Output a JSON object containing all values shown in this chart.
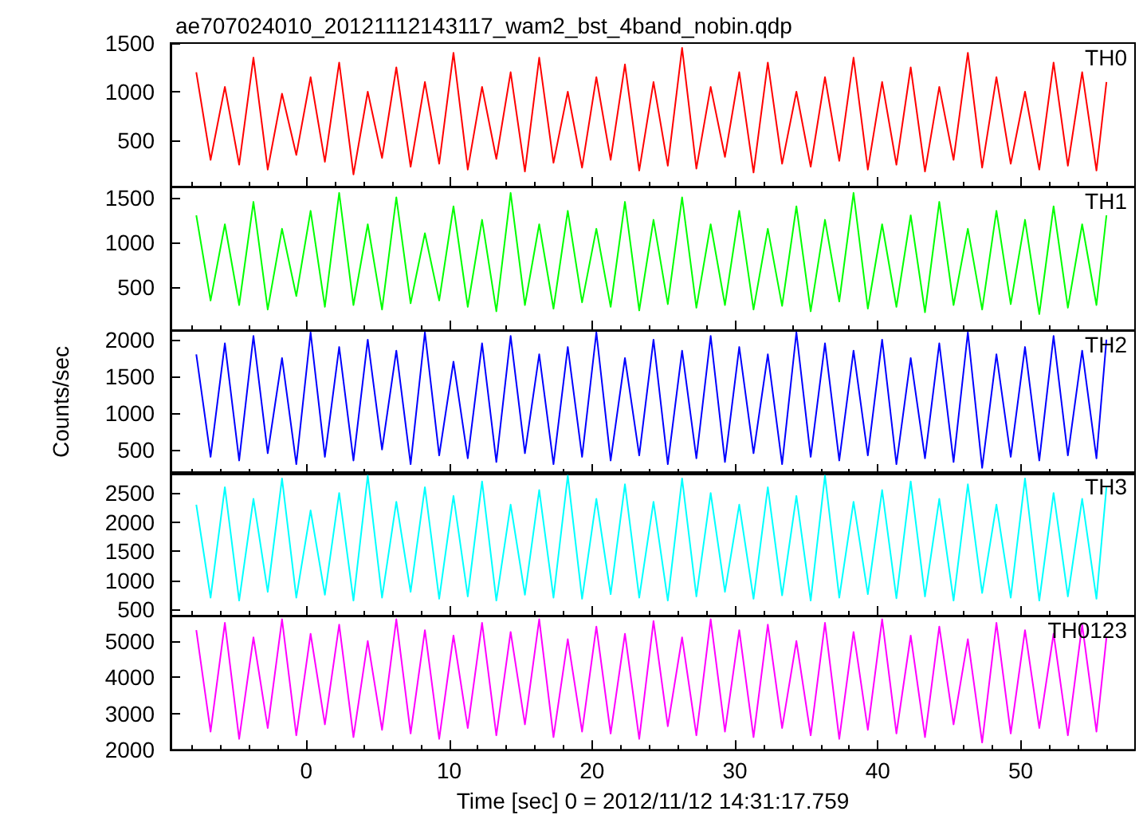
{
  "chart_data": [
    {
      "type": "line",
      "title": "ae707024010_20121112143117_wam2_bst_4band_nobin.qdp",
      "tick_labels": "y",
      "legend": "top right",
      "marker": "none",
      "line_style": "solid",
      "xlim": [
        -9.5,
        58
      ],
      "xticks": [
        0,
        10,
        20,
        30,
        40,
        50
      ],
      "ylim": [
        25,
        1500
      ],
      "yticks": [
        500,
        1000,
        1500
      ],
      "x": [
        -7.7,
        -6.7,
        -5.7,
        -4.7,
        -3.7,
        -2.7,
        -1.7,
        -0.7,
        0.3,
        1.3,
        2.3,
        3.3,
        4.3,
        5.3,
        6.3,
        7.3,
        8.3,
        9.3,
        10.3,
        11.3,
        12.3,
        13.3,
        14.3,
        15.3,
        16.3,
        17.3,
        18.3,
        19.3,
        20.3,
        21.3,
        22.3,
        23.3,
        24.3,
        25.3,
        26.3,
        27.3,
        28.3,
        29.3,
        30.3,
        31.3,
        32.3,
        33.3,
        34.3,
        35.3,
        36.3,
        37.3,
        38.3,
        39.3,
        40.3,
        41.3,
        42.3,
        43.3,
        44.3,
        45.3,
        46.3,
        47.3,
        48.3,
        49.3,
        50.3,
        51.3,
        52.3,
        53.3,
        54.3,
        55.3,
        56.0
      ],
      "series": [
        {
          "name": "TH0",
          "color": "#ff0000",
          "values": [
            1200,
            300,
            1050,
            250,
            1350,
            200,
            980,
            350,
            1150,
            280,
            1300,
            150,
            1000,
            320,
            1250,
            230,
            1100,
            260,
            1400,
            200,
            1050,
            310,
            1200,
            180,
            1350,
            270,
            1000,
            220,
            1150,
            300,
            1280,
            190,
            1100,
            240,
            1450,
            210,
            1050,
            330,
            1200,
            170,
            1300,
            260,
            1000,
            230,
            1150,
            290,
            1350,
            200,
            1100,
            250,
            1250,
            180,
            1050,
            300,
            1400,
            220,
            1150,
            260,
            1000,
            200,
            1300,
            240,
            1200,
            190,
            1100
          ]
        }
      ]
    },
    {
      "type": "line",
      "tick_labels": "y",
      "legend": "top right",
      "marker": "none",
      "line_style": "solid",
      "xlim": [
        -9.5,
        58
      ],
      "xticks": [
        0,
        10,
        20,
        30,
        40,
        50
      ],
      "ylim": [
        20,
        1620
      ],
      "yticks": [
        500,
        1000,
        1500
      ],
      "x": [
        -7.7,
        -6.7,
        -5.7,
        -4.7,
        -3.7,
        -2.7,
        -1.7,
        -0.7,
        0.3,
        1.3,
        2.3,
        3.3,
        4.3,
        5.3,
        6.3,
        7.3,
        8.3,
        9.3,
        10.3,
        11.3,
        12.3,
        13.3,
        14.3,
        15.3,
        16.3,
        17.3,
        18.3,
        19.3,
        20.3,
        21.3,
        22.3,
        23.3,
        24.3,
        25.3,
        26.3,
        27.3,
        28.3,
        29.3,
        30.3,
        31.3,
        32.3,
        33.3,
        34.3,
        35.3,
        36.3,
        37.3,
        38.3,
        39.3,
        40.3,
        41.3,
        42.3,
        43.3,
        44.3,
        45.3,
        46.3,
        47.3,
        48.3,
        49.3,
        50.3,
        51.3,
        52.3,
        53.3,
        54.3,
        55.3,
        56.0
      ],
      "series": [
        {
          "name": "TH1",
          "color": "#00ff00",
          "values": [
            1300,
            350,
            1200,
            300,
            1450,
            250,
            1150,
            400,
            1350,
            280,
            1550,
            300,
            1200,
            250,
            1500,
            320,
            1100,
            350,
            1400,
            280,
            1250,
            230,
            1550,
            300,
            1200,
            260,
            1350,
            330,
            1150,
            280,
            1450,
            240,
            1250,
            310,
            1500,
            270,
            1200,
            300,
            1350,
            250,
            1150,
            290,
            1400,
            230,
            1250,
            340,
            1550,
            260,
            1200,
            280,
            1300,
            220,
            1450,
            300,
            1150,
            250,
            1350,
            310,
            1250,
            200,
            1400,
            270,
            1200,
            300,
            1300
          ]
        }
      ]
    },
    {
      "type": "line",
      "ylabel": "Counts/sec",
      "tick_labels": "y",
      "legend": "top right",
      "marker": "none",
      "line_style": "solid",
      "xlim": [
        -9.5,
        58
      ],
      "xticks": [
        0,
        10,
        20,
        30,
        40,
        50
      ],
      "ylim": [
        170,
        2130
      ],
      "yticks": [
        500,
        1000,
        1500,
        2000
      ],
      "x": [
        -7.7,
        -6.7,
        -5.7,
        -4.7,
        -3.7,
        -2.7,
        -1.7,
        -0.7,
        0.3,
        1.3,
        2.3,
        3.3,
        4.3,
        5.3,
        6.3,
        7.3,
        8.3,
        9.3,
        10.3,
        11.3,
        12.3,
        13.3,
        14.3,
        15.3,
        16.3,
        17.3,
        18.3,
        19.3,
        20.3,
        21.3,
        22.3,
        23.3,
        24.3,
        25.3,
        26.3,
        27.3,
        28.3,
        29.3,
        30.3,
        31.3,
        32.3,
        33.3,
        34.3,
        35.3,
        36.3,
        37.3,
        38.3,
        39.3,
        40.3,
        41.3,
        42.3,
        43.3,
        44.3,
        45.3,
        46.3,
        47.3,
        48.3,
        49.3,
        50.3,
        51.3,
        52.3,
        53.3,
        54.3,
        55.3,
        56.0
      ],
      "series": [
        {
          "name": "TH2",
          "color": "#0000ff",
          "values": [
            1800,
            400,
            1950,
            350,
            2050,
            450,
            1750,
            300,
            2100,
            400,
            1900,
            350,
            2000,
            500,
            1850,
            300,
            2100,
            420,
            1700,
            380,
            1950,
            330,
            2050,
            450,
            1800,
            300,
            1900,
            400,
            2100,
            350,
            1750,
            420,
            2000,
            300,
            1850,
            380,
            2050,
            330,
            1900,
            450,
            1800,
            300,
            2100,
            400,
            1950,
            350,
            1850,
            420,
            2000,
            300,
            1750,
            380,
            1950,
            330,
            2100,
            250,
            1800,
            400,
            1900,
            350,
            2050,
            420,
            1850,
            380,
            2000
          ]
        }
      ]
    },
    {
      "type": "line",
      "tick_labels": "y",
      "legend": "top right",
      "marker": "none",
      "line_style": "solid",
      "xlim": [
        -9.5,
        58
      ],
      "xticks": [
        0,
        10,
        20,
        30,
        40,
        50
      ],
      "ylim": [
        390,
        2860
      ],
      "yticks": [
        500,
        1000,
        1500,
        2000,
        2500
      ],
      "x": [
        -7.7,
        -6.7,
        -5.7,
        -4.7,
        -3.7,
        -2.7,
        -1.7,
        -0.7,
        0.3,
        1.3,
        2.3,
        3.3,
        4.3,
        5.3,
        6.3,
        7.3,
        8.3,
        9.3,
        10.3,
        11.3,
        12.3,
        13.3,
        14.3,
        15.3,
        16.3,
        17.3,
        18.3,
        19.3,
        20.3,
        21.3,
        22.3,
        23.3,
        24.3,
        25.3,
        26.3,
        27.3,
        28.3,
        29.3,
        30.3,
        31.3,
        32.3,
        33.3,
        34.3,
        35.3,
        36.3,
        37.3,
        38.3,
        39.3,
        40.3,
        41.3,
        42.3,
        43.3,
        44.3,
        45.3,
        46.3,
        47.3,
        48.3,
        49.3,
        50.3,
        51.3,
        52.3,
        53.3,
        54.3,
        55.3,
        56.0
      ],
      "series": [
        {
          "name": "TH3",
          "color": "#00ffff",
          "values": [
            2300,
            700,
            2600,
            650,
            2400,
            800,
            2750,
            700,
            2200,
            750,
            2500,
            650,
            2800,
            700,
            2350,
            800,
            2600,
            680,
            2450,
            720,
            2700,
            650,
            2300,
            750,
            2550,
            700,
            2800,
            680,
            2400,
            760,
            2650,
            700,
            2350,
            650,
            2750,
            720,
            2500,
            800,
            2300,
            680,
            2600,
            740,
            2450,
            650,
            2800,
            700,
            2350,
            760,
            2550,
            690,
            2700,
            720,
            2400,
            650,
            2650,
            780,
            2300,
            700,
            2750,
            650,
            2500,
            720,
            2400,
            680,
            2600
          ]
        }
      ]
    },
    {
      "type": "line",
      "xlabel": "Time [sec] 0 = 2012/11/12 14:31:17.759",
      "legend": "top right",
      "marker": "none",
      "line_style": "solid",
      "xlim": [
        -9.5,
        58
      ],
      "xticks": [
        0,
        10,
        20,
        30,
        40,
        50
      ],
      "ylim": [
        2000,
        5700
      ],
      "yticks": [
        2000,
        3000,
        4000,
        5000
      ],
      "x": [
        -7.7,
        -6.7,
        -5.7,
        -4.7,
        -3.7,
        -2.7,
        -1.7,
        -0.7,
        0.3,
        1.3,
        2.3,
        3.3,
        4.3,
        5.3,
        6.3,
        7.3,
        8.3,
        9.3,
        10.3,
        11.3,
        12.3,
        13.3,
        14.3,
        15.3,
        16.3,
        17.3,
        18.3,
        19.3,
        20.3,
        21.3,
        22.3,
        23.3,
        24.3,
        25.3,
        26.3,
        27.3,
        28.3,
        29.3,
        30.3,
        31.3,
        32.3,
        33.3,
        34.3,
        35.3,
        36.3,
        37.3,
        38.3,
        39.3,
        40.3,
        41.3,
        42.3,
        43.3,
        44.3,
        45.3,
        46.3,
        47.3,
        48.3,
        49.3,
        50.3,
        51.3,
        52.3,
        53.3,
        54.3,
        55.3,
        56.0
      ],
      "series": [
        {
          "name": "TH0123",
          "color": "#ff00ff",
          "values": [
            5300,
            2500,
            5500,
            2300,
            5100,
            2600,
            5600,
            2400,
            5200,
            2700,
            5450,
            2350,
            5000,
            2550,
            5600,
            2450,
            5300,
            2300,
            5150,
            2600,
            5500,
            2400,
            5250,
            2700,
            5600,
            2350,
            5050,
            2500,
            5400,
            2450,
            5200,
            2300,
            5550,
            2650,
            5100,
            2400,
            5600,
            2500,
            5300,
            2350,
            5450,
            2600,
            5000,
            2400,
            5500,
            2300,
            5250,
            2550,
            5600,
            2450,
            5150,
            2350,
            5400,
            2700,
            5050,
            2200,
            5500,
            2450,
            5300,
            2600,
            5200,
            2400,
            5450,
            2500,
            5100
          ]
        }
      ]
    }
  ]
}
